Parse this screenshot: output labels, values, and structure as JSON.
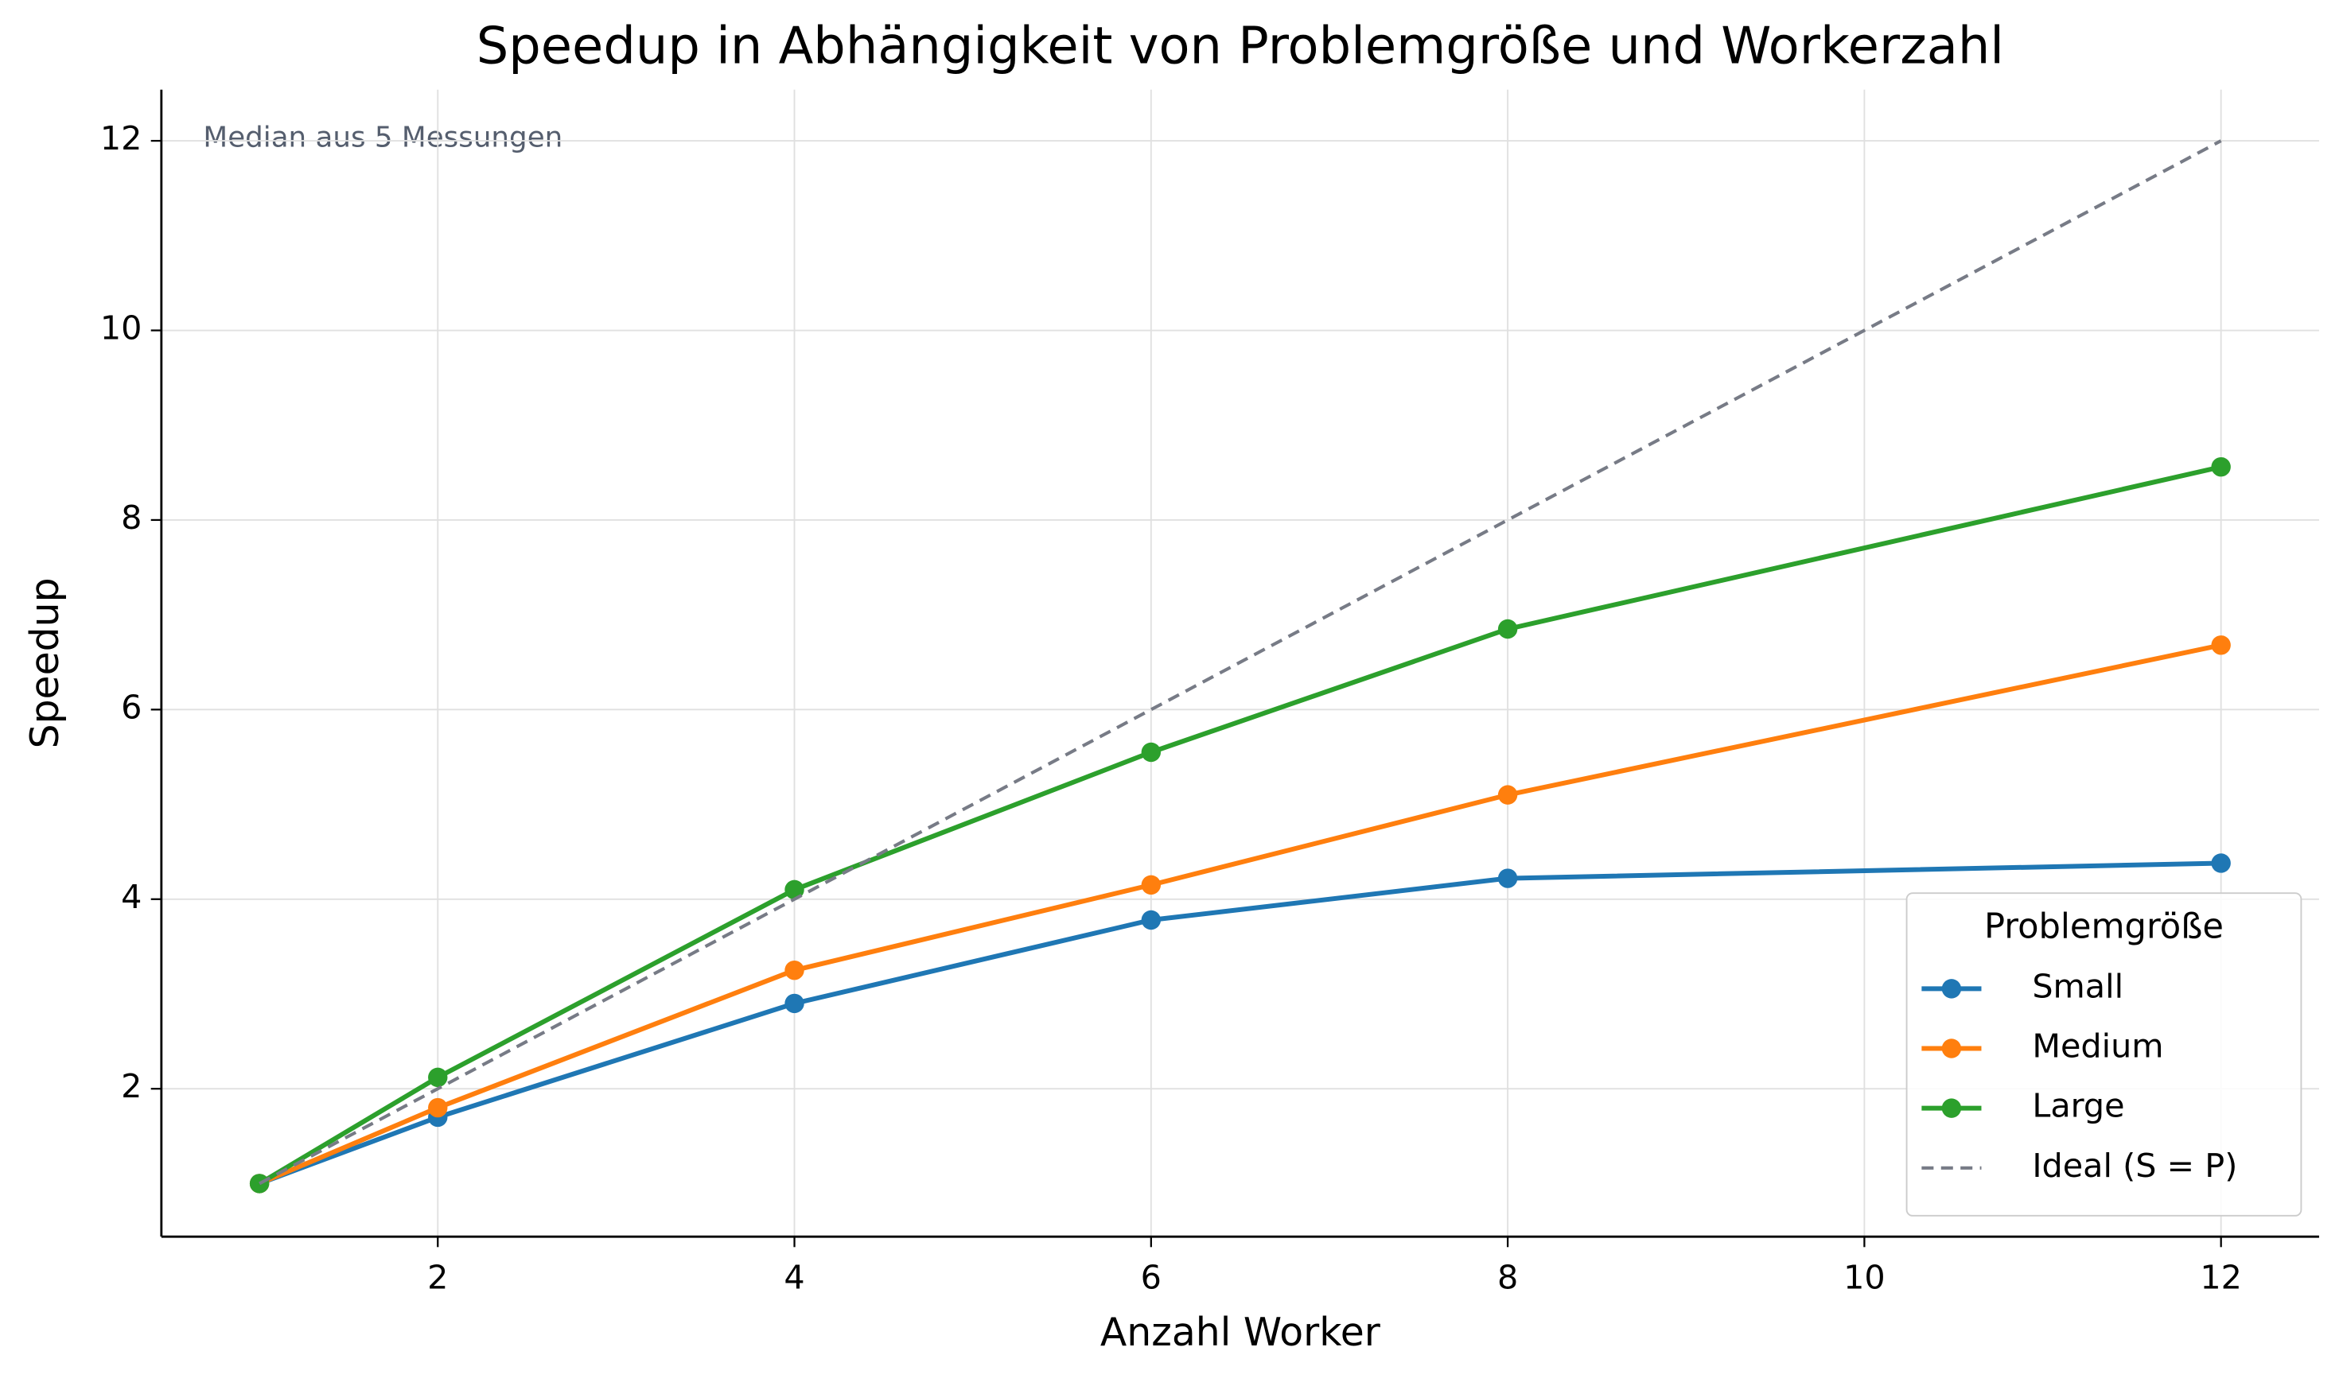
{
  "chart_data": {
    "type": "line",
    "title": "Speedup in Abhängigkeit von Problemgröße und Workerzahl",
    "annotation": "Median aus 5 Messungen",
    "xlabel": "Anzahl Worker",
    "ylabel": "Speedup",
    "x": [
      1,
      2,
      4,
      6,
      8,
      12
    ],
    "series": [
      {
        "name": "Small",
        "color": "#1f77b4",
        "marker": "o",
        "values": [
          1,
          1.7,
          2.9,
          3.78,
          4.22,
          4.38
        ]
      },
      {
        "name": "Medium",
        "color": "#ff7f0e",
        "marker": "o",
        "values": [
          1,
          1.8,
          3.25,
          4.15,
          5.1,
          6.68
        ]
      },
      {
        "name": "Large",
        "color": "#2ca02c",
        "marker": "o",
        "values": [
          1,
          2.12,
          4.1,
          5.55,
          6.85,
          8.56
        ]
      },
      {
        "name": "Ideal (S = P)",
        "color": "#777b86",
        "linestyle": "dashed",
        "values": [
          1,
          2,
          4,
          6,
          8,
          12
        ]
      }
    ],
    "xlim": [
      0.45,
      12.55
    ],
    "xticks": [
      2,
      4,
      6,
      8,
      10,
      12
    ],
    "ylim": [
      0.44,
      12.54
    ],
    "yticks": [
      2,
      4,
      6,
      8,
      10,
      12
    ],
    "grid": true,
    "legend": {
      "title": "Problemgröße",
      "loc": "lower right"
    }
  }
}
